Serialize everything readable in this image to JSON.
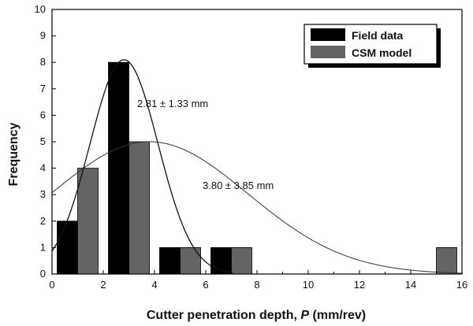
{
  "chart_data": {
    "type": "bar",
    "xlabel_main": "Cutter penetration depth, ",
    "xlabel_var": "P",
    "xlabel_unit": " (mm/rev)",
    "ylabel": "Frequency",
    "xlim": [
      0,
      16
    ],
    "ylim": [
      0,
      10
    ],
    "x_ticks": [
      0,
      2,
      4,
      6,
      8,
      10,
      12,
      14,
      16
    ],
    "y_ticks": [
      0,
      1,
      2,
      3,
      4,
      5,
      6,
      7,
      8,
      9,
      10
    ],
    "grid": false,
    "legend_position": "top-right",
    "bin_width": 0.8,
    "series": [
      {
        "name": "Field data",
        "color": "#000000",
        "bins": [
          {
            "x": 0.6,
            "value": 2
          },
          {
            "x": 2.6,
            "value": 8
          },
          {
            "x": 4.6,
            "value": 1
          },
          {
            "x": 6.6,
            "value": 1
          }
        ],
        "fit": {
          "mean": 2.81,
          "sd": 1.33,
          "peak": 8.1,
          "annotation": "2.81 ± 1.33 mm"
        }
      },
      {
        "name": "CSM model",
        "color": "#646464",
        "bins": [
          {
            "x": 1.4,
            "value": 4
          },
          {
            "x": 3.4,
            "value": 5
          },
          {
            "x": 5.4,
            "value": 1
          },
          {
            "x": 7.4,
            "value": 1
          },
          {
            "x": 15.4,
            "value": 1
          }
        ],
        "fit": {
          "mean": 3.8,
          "sd": 3.85,
          "peak": 5.0,
          "annotation": "3.80 ± 3.85 mm"
        }
      }
    ]
  }
}
